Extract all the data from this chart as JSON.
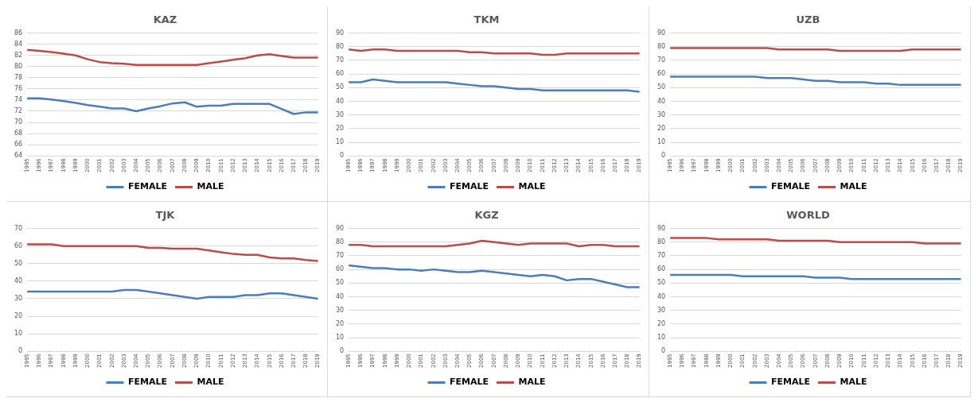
{
  "chart_data": [
    {
      "type": "line",
      "title": "KAZ",
      "categories": [
        "1995",
        "1996",
        "1997",
        "1998",
        "1999",
        "2000",
        "2001",
        "2002",
        "2003",
        "2004",
        "2005",
        "2006",
        "2007",
        "2008",
        "2009",
        "2010",
        "2011",
        "2012",
        "2013",
        "2014",
        "2015",
        "2016",
        "2017",
        "2018",
        "2019"
      ],
      "ylim": [
        64,
        86
      ],
      "yticks": [
        64,
        66,
        68,
        70,
        72,
        74,
        76,
        78,
        80,
        82,
        84,
        86
      ],
      "grid": "y",
      "legend": "bottom",
      "marker": "none",
      "series": [
        {
          "name": "FEMALE",
          "color": "#4a7ebb",
          "values": [
            74.3,
            74.3,
            74.1,
            73.8,
            73.5,
            73.1,
            72.8,
            72.5,
            72.5,
            72,
            72.5,
            72.9,
            73.4,
            73.6,
            72.8,
            73,
            73,
            73.3,
            73.3,
            73.3,
            73.3,
            72.4,
            71.5,
            71.8,
            71.8
          ]
        },
        {
          "name": "MALE",
          "color": "#be4b48",
          "values": [
            83,
            82.8,
            82.6,
            82.3,
            82,
            81.3,
            80.8,
            80.6,
            80.5,
            80.3,
            80.3,
            80.3,
            80.3,
            80.3,
            80.3,
            80.6,
            80.9,
            81.2,
            81.5,
            82,
            82.2,
            81.9,
            81.6,
            81.6,
            81.6
          ]
        }
      ]
    },
    {
      "type": "line",
      "title": "TKM",
      "categories": [
        "1995",
        "1996",
        "1997",
        "1998",
        "1999",
        "2000",
        "2001",
        "2002",
        "2003",
        "2004",
        "2005",
        "2006",
        "2007",
        "2008",
        "2009",
        "2010",
        "2011",
        "2012",
        "2013",
        "2014",
        "2015",
        "2016",
        "2017",
        "2018",
        "2019"
      ],
      "ylim": [
        0,
        90
      ],
      "yticks": [
        0,
        10,
        20,
        30,
        40,
        50,
        60,
        70,
        80,
        90
      ],
      "grid": "y",
      "legend": "bottom",
      "marker": "none",
      "series": [
        {
          "name": "FEMALE",
          "color": "#4a7ebb",
          "values": [
            54,
            54,
            56,
            55,
            54,
            54,
            54,
            54,
            54,
            53,
            52,
            51,
            51,
            50,
            49,
            49,
            48,
            48,
            48,
            48,
            48,
            48,
            48,
            48,
            47
          ]
        },
        {
          "name": "MALE",
          "color": "#be4b48",
          "values": [
            78,
            77,
            78,
            78,
            77,
            77,
            77,
            77,
            77,
            77,
            76,
            76,
            75,
            75,
            75,
            75,
            74,
            74,
            75,
            75,
            75,
            75,
            75,
            75,
            75
          ]
        }
      ]
    },
    {
      "type": "line",
      "title": "UZB",
      "categories": [
        "1995",
        "1996",
        "1997",
        "1998",
        "1999",
        "2000",
        "2001",
        "2002",
        "2003",
        "2004",
        "2005",
        "2006",
        "2007",
        "2008",
        "2009",
        "2010",
        "2011",
        "2012",
        "2013",
        "2014",
        "2015",
        "2016",
        "2017",
        "2018",
        "2019"
      ],
      "ylim": [
        0,
        90
      ],
      "yticks": [
        0,
        10,
        20,
        30,
        40,
        50,
        60,
        70,
        80,
        90
      ],
      "grid": "y",
      "legend": "bottom",
      "marker": "none",
      "series": [
        {
          "name": "FEMALE",
          "color": "#4a7ebb",
          "values": [
            58,
            58,
            58,
            58,
            58,
            58,
            58,
            58,
            57,
            57,
            57,
            56,
            55,
            55,
            54,
            54,
            54,
            53,
            53,
            52,
            52,
            52,
            52,
            52,
            52
          ]
        },
        {
          "name": "MALE",
          "color": "#be4b48",
          "values": [
            79,
            79,
            79,
            79,
            79,
            79,
            79,
            79,
            79,
            78,
            78,
            78,
            78,
            78,
            77,
            77,
            77,
            77,
            77,
            77,
            78,
            78,
            78,
            78,
            78
          ]
        }
      ]
    },
    {
      "type": "line",
      "title": "TJK",
      "categories": [
        "1995",
        "1996",
        "1997",
        "1998",
        "1999",
        "2000",
        "2001",
        "2002",
        "2003",
        "2004",
        "2005",
        "2006",
        "2007",
        "2008",
        "2009",
        "2010",
        "2011",
        "2012",
        "2013",
        "2014",
        "2015",
        "2016",
        "2017",
        "2018",
        "2019"
      ],
      "ylim": [
        0,
        70
      ],
      "yticks": [
        0,
        10,
        20,
        30,
        40,
        50,
        60,
        70
      ],
      "grid": "y",
      "legend": "bottom",
      "marker": "none",
      "series": [
        {
          "name": "FEMALE",
          "color": "#4a7ebb",
          "values": [
            34,
            34,
            34,
            34,
            34,
            34,
            34,
            34,
            35,
            35,
            34,
            33,
            32,
            31,
            30,
            31,
            31,
            31,
            32,
            32,
            33,
            33,
            32,
            31,
            30
          ]
        },
        {
          "name": "MALE",
          "color": "#be4b48",
          "values": [
            61,
            61,
            61,
            60,
            60,
            60,
            60,
            60,
            60,
            60,
            59,
            59,
            58.5,
            58.5,
            58.5,
            57.5,
            56.5,
            55.5,
            55,
            55,
            53.5,
            53,
            53,
            52,
            51.5
          ]
        }
      ]
    },
    {
      "type": "line",
      "title": "KGZ",
      "categories": [
        "1995",
        "1996",
        "1997",
        "1998",
        "1999",
        "2000",
        "2001",
        "2002",
        "2003",
        "2004",
        "2005",
        "2006",
        "2007",
        "2008",
        "2009",
        "2010",
        "2011",
        "2012",
        "2013",
        "2014",
        "2015",
        "2016",
        "2017",
        "2018",
        "2019"
      ],
      "ylim": [
        0,
        90
      ],
      "yticks": [
        0,
        10,
        20,
        30,
        40,
        50,
        60,
        70,
        80,
        90
      ],
      "grid": "y",
      "legend": "bottom",
      "marker": "none",
      "series": [
        {
          "name": "FEMALE",
          "color": "#4a7ebb",
          "values": [
            63,
            62,
            61,
            61,
            60,
            60,
            59,
            60,
            59,
            58,
            58,
            59,
            58,
            57,
            56,
            55,
            56,
            55,
            52,
            53,
            53,
            51,
            49,
            47,
            47
          ]
        },
        {
          "name": "MALE",
          "color": "#be4b48",
          "values": [
            78,
            78,
            77,
            77,
            77,
            77,
            77,
            77,
            77,
            78,
            79,
            81,
            80,
            79,
            78,
            79,
            79,
            79,
            79,
            77,
            78,
            78,
            77,
            77,
            77
          ]
        }
      ]
    },
    {
      "type": "line",
      "title": "WORLD",
      "categories": [
        "1995",
        "1996",
        "1997",
        "1998",
        "1999",
        "2000",
        "2001",
        "2002",
        "2003",
        "2004",
        "2005",
        "2006",
        "2007",
        "2008",
        "2009",
        "2010",
        "2011",
        "2012",
        "2013",
        "2014",
        "2015",
        "2016",
        "2017",
        "2018",
        "2019"
      ],
      "ylim": [
        0,
        90
      ],
      "yticks": [
        0,
        10,
        20,
        30,
        40,
        50,
        60,
        70,
        80,
        90
      ],
      "grid": "y",
      "legend": "bottom",
      "marker": "none",
      "series": [
        {
          "name": "FEMALE",
          "color": "#4a7ebb",
          "values": [
            56,
            56,
            56,
            56,
            56,
            56,
            55,
            55,
            55,
            55,
            55,
            55,
            54,
            54,
            54,
            53,
            53,
            53,
            53,
            53,
            53,
            53,
            53,
            53,
            53
          ]
        },
        {
          "name": "MALE",
          "color": "#be4b48",
          "values": [
            83,
            83,
            83,
            83,
            82,
            82,
            82,
            82,
            82,
            81,
            81,
            81,
            81,
            81,
            80,
            80,
            80,
            80,
            80,
            80,
            80,
            79,
            79,
            79,
            79
          ]
        }
      ]
    }
  ]
}
